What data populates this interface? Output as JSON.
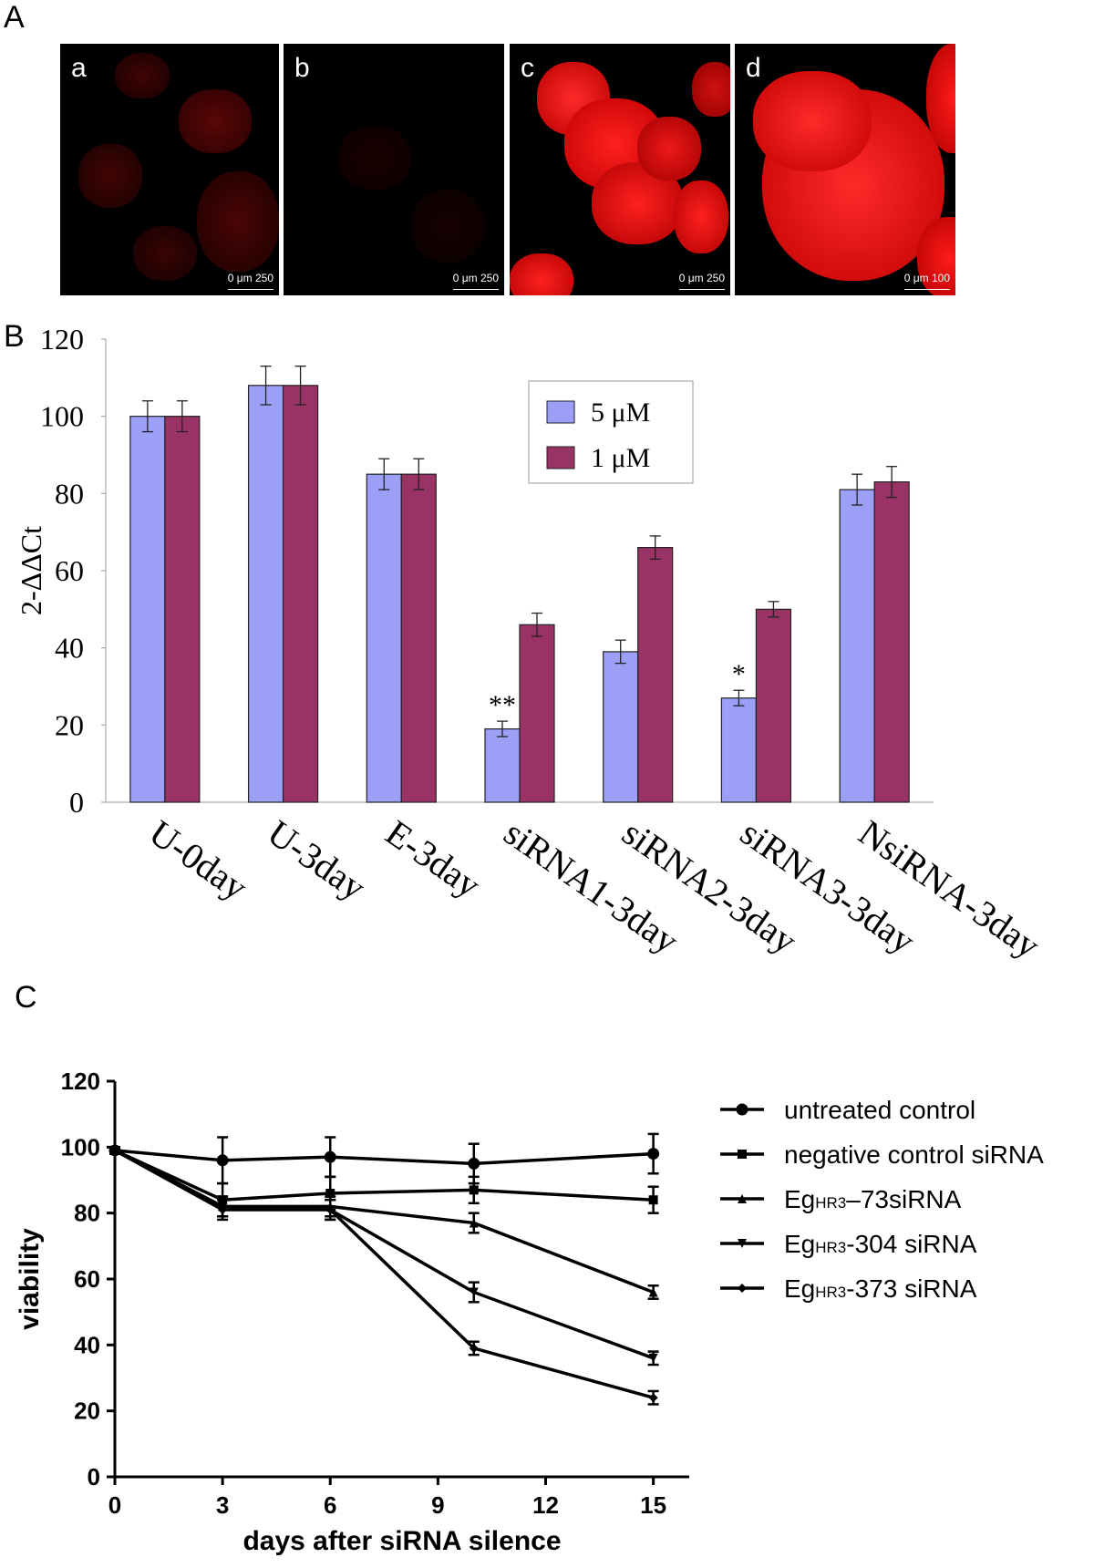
{
  "panel_a": {
    "letter": "A",
    "images": [
      {
        "label": "a",
        "scale_text": "0   μm  250",
        "tone": "dim"
      },
      {
        "label": "b",
        "scale_text": "0   μm  250",
        "tone": "dark"
      },
      {
        "label": "c",
        "scale_text": "0   μm  250",
        "tone": "bright"
      },
      {
        "label": "d",
        "scale_text": "0     μm     100",
        "tone": "bright"
      }
    ]
  },
  "panel_b": {
    "letter": "B"
  },
  "panel_c": {
    "letter": "C"
  },
  "colors": {
    "blue": "#9b9ff5",
    "maroon": "#993366"
  },
  "chart_data": [
    {
      "type": "bar",
      "categories": [
        "U-0day",
        "U-3day",
        "E-3day",
        "siRNA1-3day",
        "siRNA2-3day",
        "siRNA3-3day",
        "NsiRNA-3day"
      ],
      "series": [
        {
          "name": "5 μM",
          "values": [
            100,
            108,
            85,
            19,
            39,
            27,
            81
          ],
          "errors": [
            4,
            5,
            4,
            2,
            3,
            2,
            4
          ]
        },
        {
          "name": "1 μM",
          "values": [
            100,
            108,
            85,
            46,
            66,
            50,
            83
          ],
          "errors": [
            4,
            5,
            4,
            3,
            3,
            2,
            4
          ]
        }
      ],
      "annotations": [
        {
          "category": "siRNA1-3day",
          "text": "**"
        },
        {
          "category": "siRNA3-3day",
          "text": "*"
        }
      ],
      "ylabel": "2-ΔΔCt",
      "yticks": [
        0,
        20,
        40,
        60,
        80,
        100,
        120
      ],
      "ylim": [
        0,
        120
      ],
      "legend_position": "top-right"
    },
    {
      "type": "line",
      "x": [
        0,
        3,
        6,
        10,
        15
      ],
      "xticks": [
        0,
        3,
        6,
        9,
        12,
        15
      ],
      "yticks": [
        0,
        20,
        40,
        60,
        80,
        100,
        120
      ],
      "xlim": [
        0,
        16
      ],
      "ylim": [
        0,
        120
      ],
      "xlabel": "days after siRNA silence",
      "ylabel": "viability",
      "legend_position": "right",
      "series": [
        {
          "name": "untreated control",
          "marker": "circle",
          "values": [
            99,
            96,
            97,
            95,
            98
          ],
          "errors": [
            1,
            7,
            6,
            6,
            6
          ]
        },
        {
          "name": "negative control siRNA",
          "marker": "square",
          "values": [
            99,
            84,
            86,
            87,
            84
          ],
          "errors": [
            1,
            5,
            5,
            4,
            4
          ]
        },
        {
          "name": "Eg",
          "sub": "HR3",
          "suffix": "–73siRNA",
          "marker": "triangle",
          "values": [
            99,
            82,
            82,
            77,
            56
          ],
          "errors": [
            1,
            3,
            3,
            3,
            2
          ]
        },
        {
          "name": "Eg",
          "sub": "HR3",
          "suffix": "-304 siRNA",
          "marker": "triangle-down",
          "values": [
            99,
            82,
            81,
            56,
            36
          ],
          "errors": [
            1,
            3,
            3,
            3,
            2
          ]
        },
        {
          "name": "Eg",
          "sub": "HR3",
          "suffix": "-373 siRNA",
          "marker": "diamond",
          "values": [
            99,
            81,
            81,
            39,
            24
          ],
          "errors": [
            1,
            3,
            3,
            2,
            2
          ]
        }
      ]
    }
  ]
}
